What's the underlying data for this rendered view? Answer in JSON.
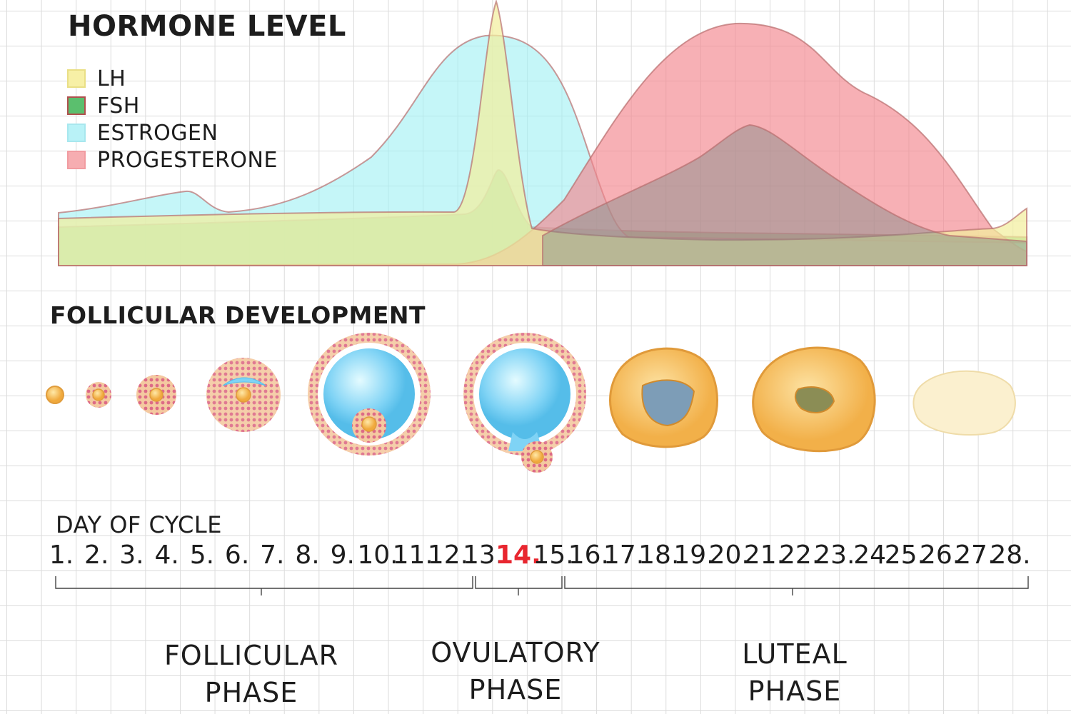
{
  "hormone_title": "HORMONE LEVEL",
  "legend": [
    {
      "label": "LH",
      "fill": "#f7f0a6",
      "stroke": "#e9df86"
    },
    {
      "label": "FSH",
      "fill": "#5bbf6e",
      "stroke": "#b0504e"
    },
    {
      "label": "ESTROGEN",
      "fill": "#b9f2f7",
      "stroke": "#a8e7ee"
    },
    {
      "label": "PROGESTERONE",
      "fill": "#f6adb1",
      "stroke": "#f19ca1"
    }
  ],
  "colors": {
    "lh": "#f3ee9e",
    "fsh": "#6dc97b",
    "estrogen": "#9ef0f4",
    "progesterone": "#f3868d",
    "curve_stroke": "#b86d6d",
    "highlight_day": "#e8262f"
  },
  "follicular_title": "FOLLICULAR DEVELOPMENT",
  "day_title": "DAY OF CYCLE",
  "days": [
    "1.",
    "2.",
    "3.",
    "4.",
    "5.",
    "6.",
    "7.",
    "8.",
    "9.",
    "10.",
    "11.",
    "12.",
    "13.",
    "14.",
    "15.",
    "16.",
    "17.",
    "18.",
    "19.",
    "20.",
    "21.",
    "22.",
    "23.",
    "24",
    "25.",
    "26.",
    "27.",
    "28."
  ],
  "highlight_day_index": 13,
  "phases": [
    {
      "line1": "FOLLICULAR",
      "line2": "PHASE"
    },
    {
      "line1": "OVULATORY",
      "line2": "PHASE"
    },
    {
      "line1": "LUTEAL",
      "line2": "PHASE"
    }
  ]
}
